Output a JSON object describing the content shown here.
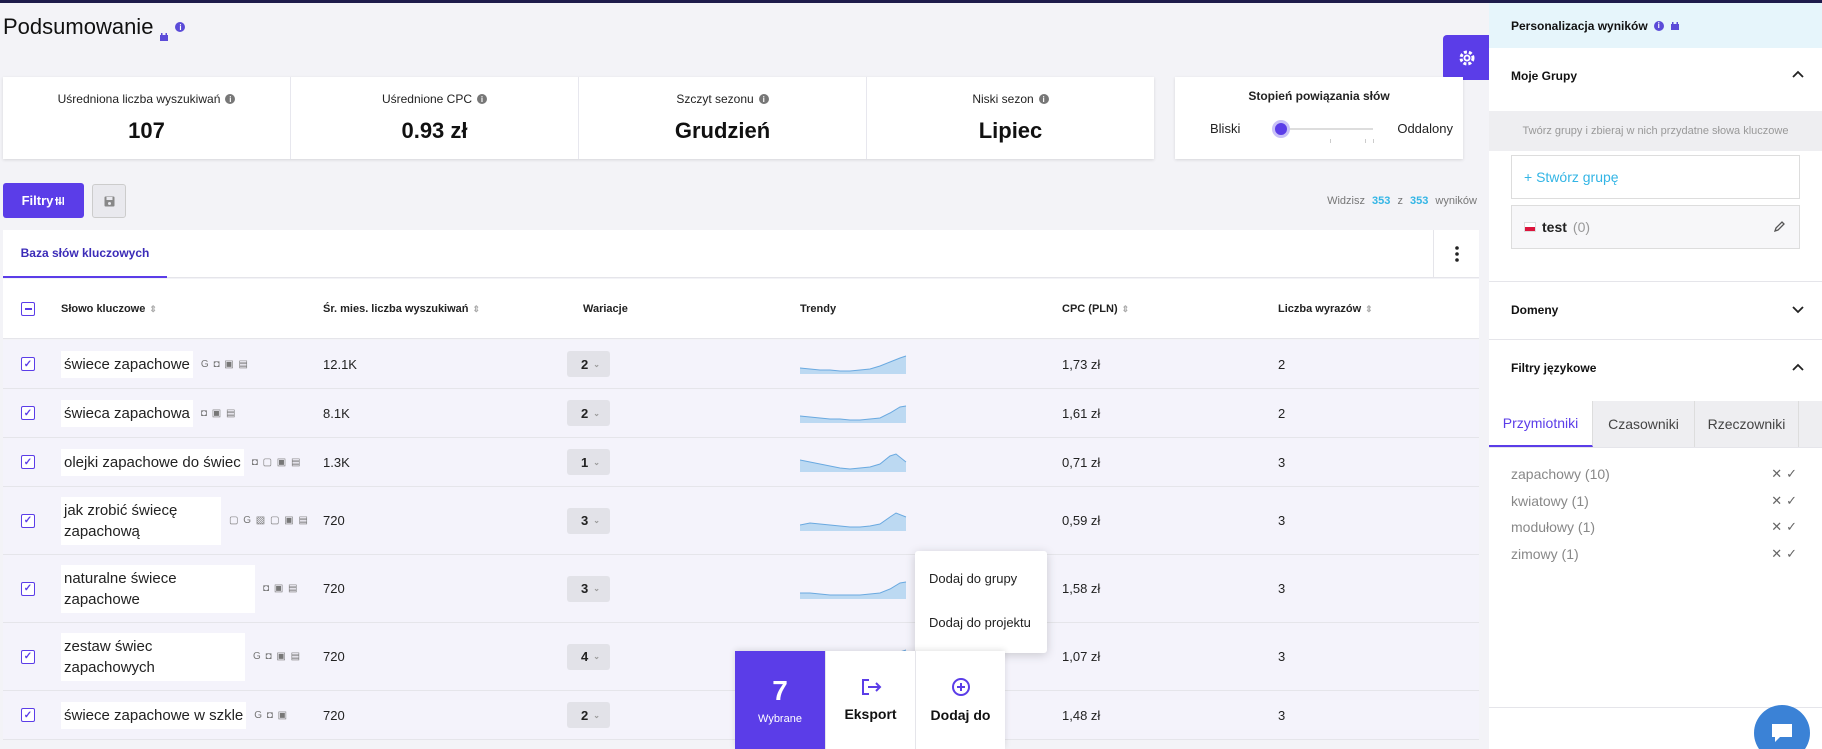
{
  "header": {
    "title": "Podsumowanie"
  },
  "stats": [
    {
      "label": "Uśredniona liczba wyszukiwań",
      "value": "107"
    },
    {
      "label": "Uśrednione CPC",
      "value": "0.93 zł"
    },
    {
      "label": "Szczyt sezonu",
      "value": "Grudzień"
    },
    {
      "label": "Niski sezon",
      "value": "Lipiec"
    }
  ],
  "relation": {
    "title": "Stopień powiązania słów",
    "left": "Bliski",
    "right": "Oddalony",
    "level_fraction": 0
  },
  "toolbar": {
    "filter_label": "Filtry",
    "results_prefix": "Widzisz",
    "results_shown": "353",
    "results_sep": "z",
    "results_total": "353",
    "results_suffix": "wyników"
  },
  "tabs": {
    "active": "Baza słów kluczowych"
  },
  "table": {
    "columns": [
      "Słowo kluczowe",
      "Śr. mies. liczba wyszukiwań",
      "Wariacje",
      "Trendy",
      "CPC (PLN)",
      "Liczba wyrazów"
    ],
    "rows": [
      {
        "keyword": "świece zapachowe",
        "icons": "G ◘ ▣ ▤",
        "searches": "12.1K",
        "variations": "2",
        "cpc": "1,73 zł",
        "words": "2"
      },
      {
        "keyword": "świeca zapachowa",
        "icons": "◘ ▣ ▤",
        "searches": "8.1K",
        "variations": "2",
        "cpc": "1,61 zł",
        "words": "2"
      },
      {
        "keyword": "olejki zapachowe do świec",
        "icons": "◘ ▢ ▣ ▤",
        "searches": "1.3K",
        "variations": "1",
        "cpc": "0,71 zł",
        "words": "3"
      },
      {
        "keyword": "jak zrobić świecę zapachową",
        "icons": "▢ G ▧ ▢ ▣ ▤",
        "searches": "720",
        "variations": "3",
        "cpc": "0,59 zł",
        "words": "3"
      },
      {
        "keyword": "naturalne świece zapachowe",
        "icons": "◘ ▣ ▤",
        "searches": "720",
        "variations": "3",
        "cpc": "1,58 zł",
        "words": "3"
      },
      {
        "keyword": "zestaw świec zapachowych",
        "icons": "G ◘ ▣ ▤",
        "searches": "720",
        "variations": "4",
        "cpc": "1,07 zł",
        "words": "3"
      },
      {
        "keyword": "świece zapachowe w szkle",
        "icons": "G ◘ ▣",
        "searches": "720",
        "variations": "2",
        "cpc": "1,48 zł",
        "words": "3"
      }
    ]
  },
  "popup": {
    "add_to_group": "Dodaj do grupy",
    "add_to_project": "Dodaj do projektu"
  },
  "action_bar": {
    "selected_count": "7",
    "selected_label": "Wybrane",
    "export_label": "Eksport",
    "add_label": "Dodaj do"
  },
  "sidebar": {
    "title": "Personalizacja wyników",
    "my_groups": "Moje Grupy",
    "hint": "Twórz grupy i zbieraj w nich przydatne słowa kluczowe",
    "create_group": "+ Stwórz grupę",
    "group_name": "test",
    "group_count": "(0)",
    "domains": "Domeny",
    "lang_filters": "Filtry językowe",
    "lang_tabs": [
      "Przymiotniki",
      "Czasowniki",
      "Rzeczowniki"
    ],
    "lang_items": [
      "zapachowy (10)",
      "kwiatowy (1)",
      "modułowy (1)",
      "zimowy (1)"
    ]
  },
  "colors": {
    "accent": "#5b3de8",
    "link": "#33b5e5",
    "row_bg": "#f4f3fb"
  },
  "icons": [
    "info-icon",
    "gear-icon",
    "filter-icon",
    "save-icon",
    "kebab-icon",
    "sort-icon",
    "chevron-down-icon",
    "chevron-up-icon",
    "edit-icon",
    "export-icon",
    "add-circle-icon",
    "chat-icon",
    "check-icon",
    "close-icon"
  ]
}
